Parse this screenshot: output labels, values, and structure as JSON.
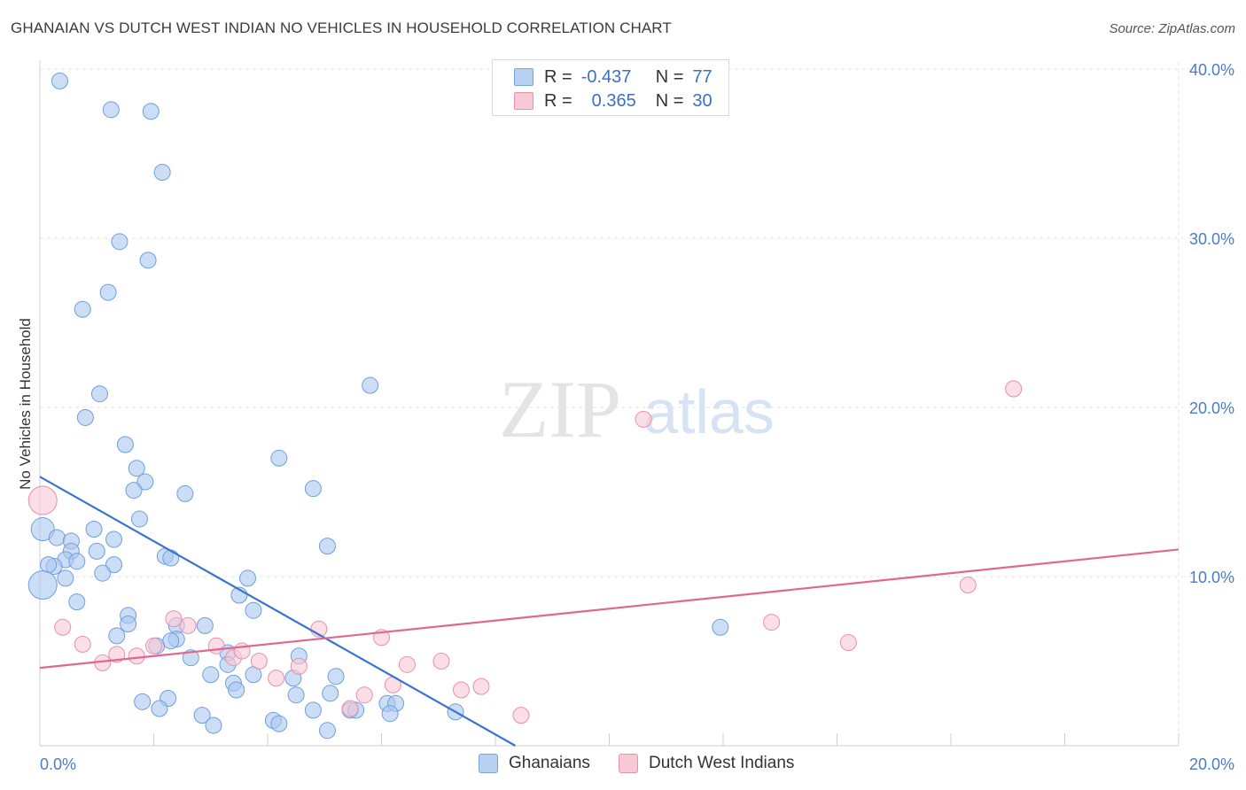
{
  "title": "GHANAIAN VS DUTCH WEST INDIAN NO VEHICLES IN HOUSEHOLD CORRELATION CHART",
  "source": "Source: ZipAtlas.com",
  "watermark": {
    "zip": "ZIP",
    "atlas": "atlas"
  },
  "legend": {
    "rows": [
      {
        "r_label": "R =",
        "r_value": "-0.437",
        "n_label": "N =",
        "n_value": "77",
        "color": "#b8d0f0",
        "border": "#7aa3dc"
      },
      {
        "r_label": "R =",
        "r_value": "0.365",
        "n_label": "N =",
        "n_value": "30",
        "color": "#f8c8d6",
        "border": "#e890ab"
      }
    ]
  },
  "bottom_legend": {
    "ghanaians": "Ghanaians",
    "dutch": "Dutch West Indians"
  },
  "chart_data": {
    "type": "scatter",
    "title": "GHANAIAN VS DUTCH WEST INDIAN NO VEHICLES IN HOUSEHOLD CORRELATION CHART",
    "xlabel": "",
    "ylabel": "No Vehicles in Household",
    "xlim": [
      0,
      20
    ],
    "ylim": [
      0,
      40
    ],
    "x_tick_labels": [
      "0.0%",
      "20.0%"
    ],
    "y_ticks": [
      10,
      20,
      30,
      40
    ],
    "y_tick_labels": [
      "10.0%",
      "20.0%",
      "30.0%",
      "40.0%"
    ],
    "grid": true,
    "series": [
      {
        "name": "Ghanaians",
        "color": "#aac8f0",
        "stroke": "#6f9fdc",
        "trend": {
          "x": [
            0,
            8.35
          ],
          "y": [
            15.9,
            0
          ]
        },
        "points": [
          [
            0.35,
            39.3
          ],
          [
            1.25,
            37.6
          ],
          [
            1.95,
            37.5
          ],
          [
            2.15,
            33.9
          ],
          [
            1.4,
            29.8
          ],
          [
            1.9,
            28.7
          ],
          [
            1.2,
            26.8
          ],
          [
            0.75,
            25.8
          ],
          [
            1.05,
            20.8
          ],
          [
            5.8,
            21.3
          ],
          [
            0.8,
            19.4
          ],
          [
            1.5,
            17.8
          ],
          [
            4.2,
            17.0
          ],
          [
            1.7,
            16.4
          ],
          [
            1.85,
            15.6
          ],
          [
            1.65,
            15.1
          ],
          [
            2.55,
            14.9
          ],
          [
            4.8,
            15.2
          ],
          [
            0.05,
            12.8
          ],
          [
            0.3,
            12.3
          ],
          [
            0.95,
            12.8
          ],
          [
            0.55,
            12.1
          ],
          [
            1.3,
            12.2
          ],
          [
            0.55,
            11.5
          ],
          [
            1.0,
            11.5
          ],
          [
            5.05,
            11.8
          ],
          [
            0.45,
            11.0
          ],
          [
            0.65,
            10.9
          ],
          [
            0.25,
            10.6
          ],
          [
            0.15,
            10.7
          ],
          [
            2.2,
            11.2
          ],
          [
            2.3,
            11.1
          ],
          [
            1.3,
            10.7
          ],
          [
            1.1,
            10.2
          ],
          [
            0.45,
            9.9
          ],
          [
            3.65,
            9.9
          ],
          [
            0.05,
            9.5
          ],
          [
            1.75,
            13.4
          ],
          [
            0.65,
            8.5
          ],
          [
            3.5,
            8.9
          ],
          [
            3.75,
            8.0
          ],
          [
            1.55,
            7.7
          ],
          [
            1.55,
            7.2
          ],
          [
            2.4,
            7.1
          ],
          [
            2.9,
            7.1
          ],
          [
            1.35,
            6.5
          ],
          [
            2.4,
            6.3
          ],
          [
            2.05,
            5.9
          ],
          [
            3.3,
            5.5
          ],
          [
            2.65,
            5.2
          ],
          [
            3.3,
            4.8
          ],
          [
            4.55,
            5.3
          ],
          [
            3.75,
            4.2
          ],
          [
            3.0,
            4.2
          ],
          [
            4.45,
            4.0
          ],
          [
            5.2,
            4.1
          ],
          [
            3.4,
            3.7
          ],
          [
            3.45,
            3.3
          ],
          [
            5.1,
            3.1
          ],
          [
            4.5,
            3.0
          ],
          [
            2.25,
            2.8
          ],
          [
            1.8,
            2.6
          ],
          [
            2.1,
            2.2
          ],
          [
            6.1,
            2.5
          ],
          [
            6.25,
            2.5
          ],
          [
            4.8,
            2.1
          ],
          [
            5.45,
            2.1
          ],
          [
            5.55,
            2.1
          ],
          [
            6.15,
            1.9
          ],
          [
            7.3,
            2.0
          ],
          [
            2.85,
            1.8
          ],
          [
            4.1,
            1.5
          ],
          [
            4.2,
            1.3
          ],
          [
            3.05,
            1.2
          ],
          [
            5.05,
            0.9
          ],
          [
            11.95,
            7.0
          ],
          [
            2.3,
            6.2
          ]
        ]
      },
      {
        "name": "Dutch West Indians",
        "color": "#f8c8d6",
        "stroke": "#e890ab",
        "trend": {
          "x": [
            0,
            20
          ],
          "y": [
            4.6,
            11.6
          ]
        },
        "points": [
          [
            0.05,
            14.5
          ],
          [
            10.6,
            19.3
          ],
          [
            17.1,
            21.1
          ],
          [
            16.3,
            9.5
          ],
          [
            12.85,
            7.3
          ],
          [
            14.2,
            6.1
          ],
          [
            0.4,
            7.0
          ],
          [
            0.75,
            6.0
          ],
          [
            2.35,
            7.5
          ],
          [
            2.6,
            7.1
          ],
          [
            2.0,
            5.9
          ],
          [
            3.1,
            5.9
          ],
          [
            1.35,
            5.4
          ],
          [
            1.7,
            5.3
          ],
          [
            1.1,
            4.9
          ],
          [
            3.4,
            5.2
          ],
          [
            3.55,
            5.6
          ],
          [
            3.85,
            5.0
          ],
          [
            4.15,
            4.0
          ],
          [
            4.55,
            4.7
          ],
          [
            4.9,
            6.9
          ],
          [
            6.0,
            6.4
          ],
          [
            6.45,
            4.8
          ],
          [
            7.05,
            5.0
          ],
          [
            6.2,
            3.6
          ],
          [
            7.4,
            3.3
          ],
          [
            7.75,
            3.5
          ],
          [
            5.7,
            3.0
          ],
          [
            5.45,
            2.2
          ],
          [
            8.45,
            1.8
          ]
        ]
      }
    ]
  }
}
